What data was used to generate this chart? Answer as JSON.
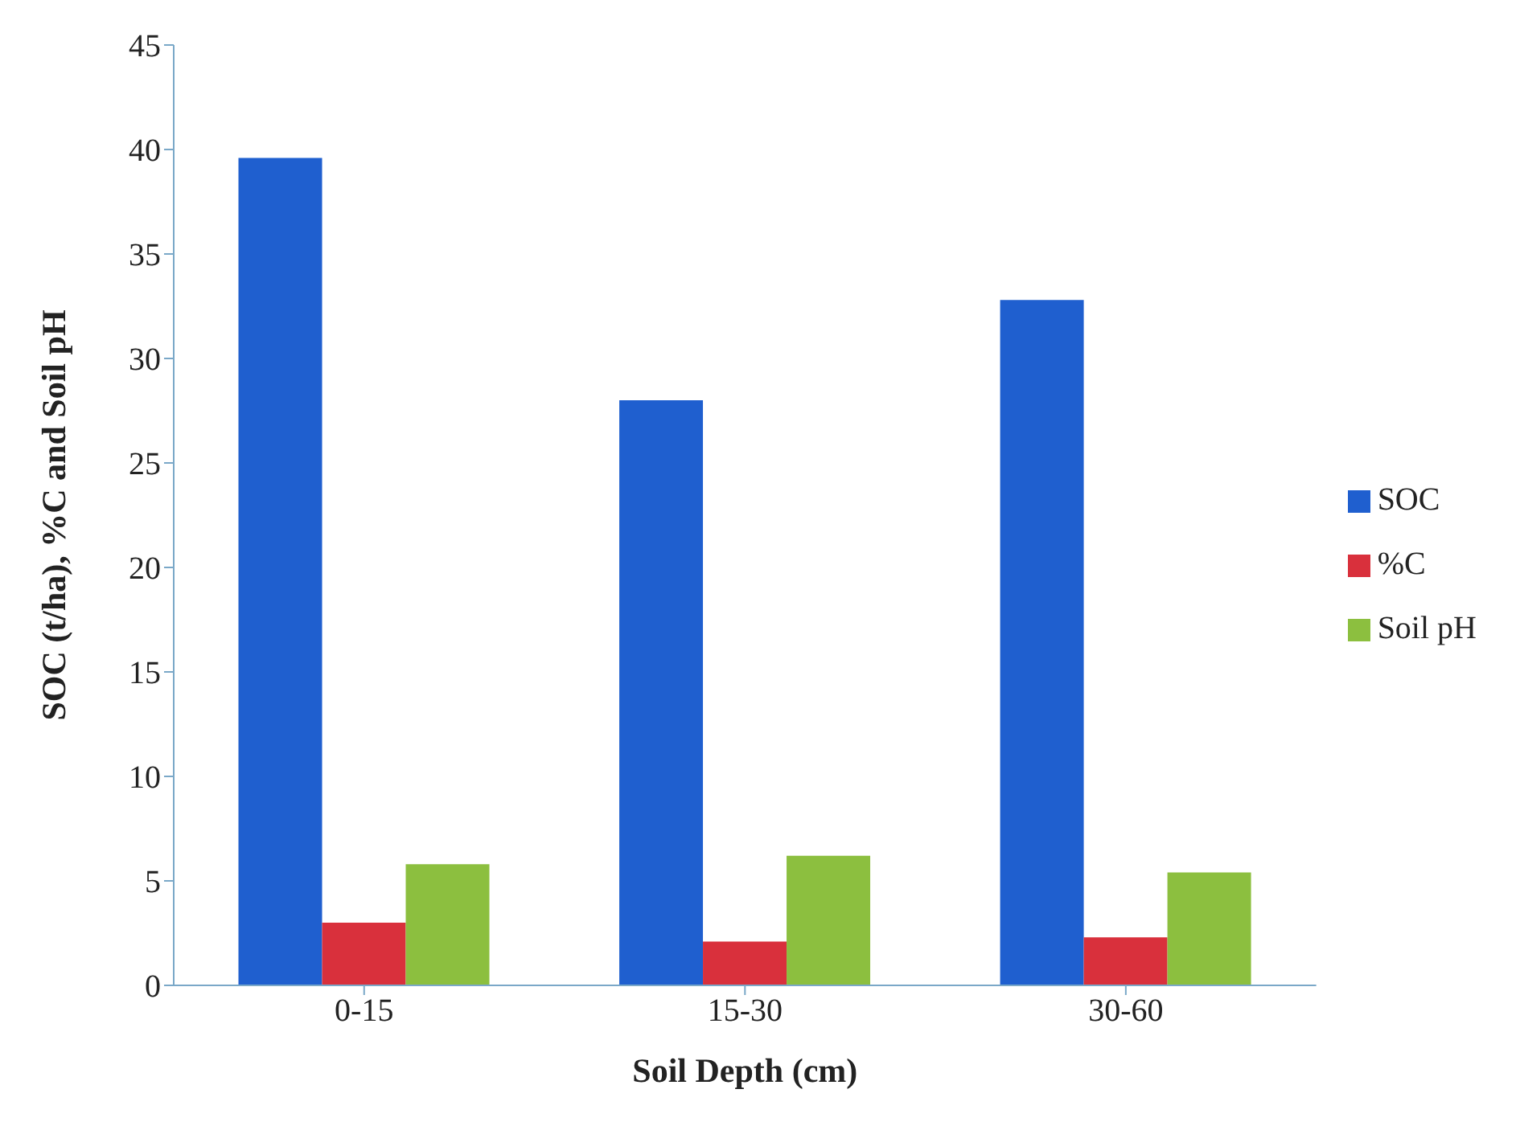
{
  "chart_data": {
    "type": "bar",
    "xlabel": "Soil Depth (cm)",
    "ylabel": "SOC (t/ha), %C and Soil pH",
    "categories": [
      "0-15",
      "15-30",
      "30-60"
    ],
    "series": [
      {
        "name": "SOC",
        "color": "#1f5fcf",
        "values": [
          39.6,
          28.0,
          32.8
        ]
      },
      {
        "name": "%C",
        "color": "#d9303c",
        "values": [
          3.0,
          2.1,
          2.3
        ]
      },
      {
        "name": "Soil pH",
        "color": "#8cbf3f",
        "values": [
          5.8,
          6.2,
          5.4
        ]
      }
    ],
    "ylim": [
      0,
      45
    ],
    "yticks": [
      0,
      5,
      10,
      15,
      20,
      25,
      30,
      35,
      40,
      45
    ],
    "grid": false,
    "legend": "right"
  }
}
